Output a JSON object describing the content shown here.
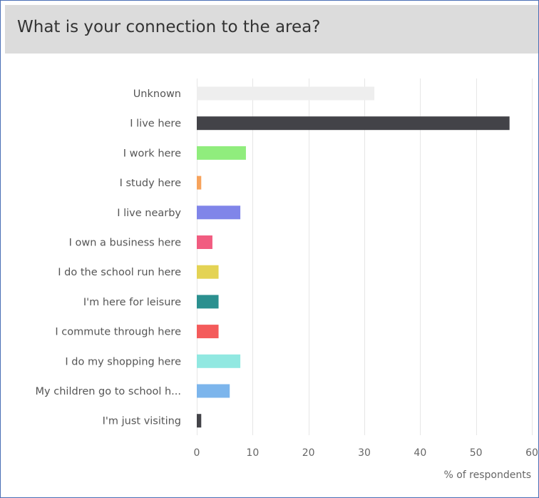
{
  "header": {
    "title": "What is your connection to the area?"
  },
  "chart_data": {
    "type": "bar",
    "orientation": "horizontal",
    "title": "What is your connection to the area?",
    "xlabel": "% of respondents",
    "ylabel": "",
    "xlim": [
      0,
      60
    ],
    "xticks": [
      0,
      10,
      20,
      30,
      40,
      50,
      60
    ],
    "grid": true,
    "categories": [
      "Unknown",
      "I live here",
      "I work here",
      "I study here",
      "I live nearby",
      "I own a business here",
      "I do the school run here",
      "I'm here for leisure",
      "I commute through here",
      "I do my shopping here",
      "My children go to school h...",
      "I'm just visiting"
    ],
    "values": [
      31.8,
      56,
      8.8,
      0.8,
      7.8,
      2.8,
      3.9,
      3.9,
      3.9,
      7.8,
      5.9,
      0.8
    ],
    "colors": [
      "#eeeeee",
      "#434348",
      "#90ed7d",
      "#f7a35c",
      "#8085e9",
      "#f15c80",
      "#e4d354",
      "#2b908f",
      "#f45b5b",
      "#91e8e1",
      "#7cb5ec",
      "#434348"
    ]
  }
}
